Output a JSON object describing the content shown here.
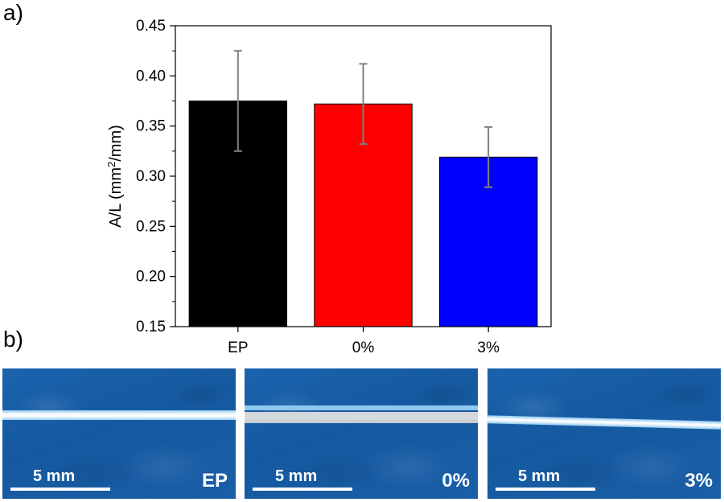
{
  "panels": {
    "a_label": "a)",
    "b_label": "b)"
  },
  "chart_data": {
    "type": "bar",
    "categories": [
      "EP",
      "0%",
      "3%"
    ],
    "values": [
      0.375,
      0.372,
      0.319
    ],
    "errors": [
      0.05,
      0.04,
      0.03
    ],
    "colors": [
      "#000000",
      "#ff0000",
      "#0000ff"
    ],
    "ylabel_main": "A/L (mm",
    "ylabel_sup": "2",
    "ylabel_end": "/mm)",
    "xlabel": "",
    "ylim": [
      0.15,
      0.45
    ],
    "yticks": [
      "0.15",
      "0.20",
      "0.25",
      "0.30",
      "0.35",
      "0.40",
      "0.45"
    ]
  },
  "photos": [
    {
      "sample": "EP",
      "scale": "5 mm"
    },
    {
      "sample": "0%",
      "scale": "5 mm"
    },
    {
      "sample": "3%",
      "scale": "5 mm"
    }
  ]
}
